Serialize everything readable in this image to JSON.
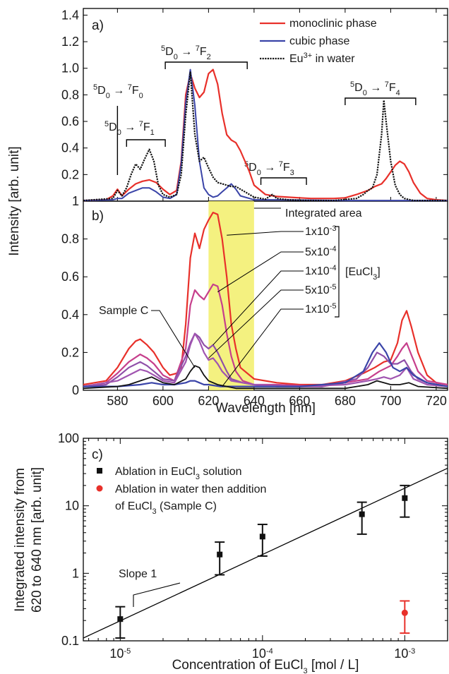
{
  "figure": {
    "panel_a_label": "a)",
    "panel_b_label": "b)",
    "panel_c_label": "c)",
    "shared_ylabel": "Intensity [arb. unit]",
    "xlabel_ab": "Wavelength [nm]",
    "integrated_area_label": "Integrated area",
    "euc_label": "[EuCl3]",
    "sample_c_label": "Sample C",
    "slope_label": "Slope 1",
    "transitions": [
      "5D0 → 7F0",
      "5D0 → 7F1",
      "5D0 → 7F2",
      "5D0 → 7F3",
      "5D0 → 7F4"
    ],
    "colors": {
      "red": "#e8302a",
      "blue": "#3a44a8",
      "black": "#111111",
      "yellow": "#f2ee6a",
      "mag1": "#c63f8c",
      "mag2": "#a054b0",
      "mag3": "#8f4fa8"
    }
  },
  "chart_data": [
    {
      "panel": "a",
      "type": "line",
      "xlabel": "Wavelength [nm]",
      "ylabel": "Intensity [arb. unit]",
      "xlim": [
        565,
        725
      ],
      "ylim": [
        0,
        1.45
      ],
      "x_ticks": [
        580,
        600,
        620,
        640,
        660,
        680,
        700,
        720
      ],
      "y_ticks": [
        0.2,
        0.4,
        0.6,
        0.8,
        1.0,
        1.2,
        1.4
      ],
      "y_tick_labels": [
        "0.2",
        "0.4",
        "0.6",
        "0.8",
        "1.0",
        "1.2",
        "1.4"
      ],
      "legend": [
        "monoclinic phase",
        "cubic phase",
        "Eu3+ in water"
      ],
      "legend_position": "top-right",
      "series": [
        {
          "name": "monoclinic phase",
          "style": "solid red",
          "x": [
            565,
            575,
            578,
            580,
            582,
            585,
            588,
            591,
            594,
            597,
            600,
            603,
            606,
            608,
            610,
            612,
            614,
            616,
            618,
            620,
            622,
            624,
            626,
            628,
            630,
            632,
            634,
            636,
            638,
            640,
            645,
            650,
            655,
            660,
            665,
            670,
            675,
            680,
            685,
            690,
            693,
            696,
            698,
            700,
            702,
            704,
            706,
            708,
            710,
            713,
            716,
            720,
            725
          ],
          "y": [
            0.005,
            0.01,
            0.04,
            0.09,
            0.04,
            0.09,
            0.13,
            0.15,
            0.16,
            0.14,
            0.09,
            0.05,
            0.08,
            0.3,
            0.8,
            0.96,
            0.85,
            0.78,
            0.82,
            0.96,
            0.99,
            0.88,
            0.66,
            0.5,
            0.46,
            0.44,
            0.38,
            0.3,
            0.22,
            0.12,
            0.05,
            0.035,
            0.03,
            0.025,
            0.02,
            0.02,
            0.02,
            0.025,
            0.05,
            0.08,
            0.11,
            0.13,
            0.17,
            0.22,
            0.27,
            0.3,
            0.28,
            0.22,
            0.14,
            0.06,
            0.02,
            0.01,
            0.005
          ]
        },
        {
          "name": "cubic phase",
          "style": "solid blue",
          "x": [
            565,
            578,
            580,
            582,
            585,
            588,
            591,
            594,
            597,
            600,
            603,
            606,
            608,
            610,
            612,
            614,
            616,
            618,
            620,
            622,
            624,
            626,
            628,
            630,
            632,
            634,
            640,
            650,
            680,
            700,
            725
          ],
          "y": [
            0.005,
            0.01,
            0.02,
            0.02,
            0.06,
            0.08,
            0.1,
            0.1,
            0.07,
            0.03,
            0.02,
            0.05,
            0.28,
            0.74,
            0.99,
            0.72,
            0.3,
            0.1,
            0.05,
            0.03,
            0.04,
            0.07,
            0.1,
            0.13,
            0.09,
            0.04,
            0.01,
            0.01,
            0.005,
            0.005,
            0.005
          ]
        },
        {
          "name": "Eu3+ in water",
          "style": "dotted black",
          "x": [
            565,
            578,
            580,
            582,
            584,
            586,
            588,
            590,
            592,
            594,
            596,
            598,
            600,
            603,
            606,
            608,
            610,
            612,
            614,
            616,
            618,
            620,
            622,
            624,
            626,
            628,
            630,
            632,
            634,
            636,
            638,
            640,
            645,
            648,
            650,
            655,
            665,
            675,
            685,
            688,
            690,
            692,
            694,
            696,
            697,
            698,
            700,
            702,
            704,
            706,
            710,
            725
          ],
          "y": [
            0.005,
            0.02,
            0.08,
            0.04,
            0.1,
            0.2,
            0.28,
            0.24,
            0.32,
            0.39,
            0.3,
            0.12,
            0.05,
            0.03,
            0.05,
            0.2,
            0.65,
            0.97,
            0.5,
            0.3,
            0.33,
            0.25,
            0.18,
            0.14,
            0.13,
            0.12,
            0.11,
            0.11,
            0.09,
            0.07,
            0.05,
            0.03,
            0.015,
            0.05,
            0.02,
            0.01,
            0.005,
            0.005,
            0.02,
            0.05,
            0.08,
            0.1,
            0.2,
            0.5,
            0.76,
            0.6,
            0.3,
            0.12,
            0.05,
            0.02,
            0.005,
            0.005
          ]
        }
      ]
    },
    {
      "panel": "b",
      "type": "line",
      "xlabel": "Wavelength [nm]",
      "ylabel": "Intensity [arb. unit]",
      "xlim": [
        565,
        725
      ],
      "ylim": [
        0,
        1.0
      ],
      "x_ticks": [
        580,
        600,
        620,
        640,
        660,
        680,
        700,
        720
      ],
      "y_ticks": [
        0,
        0.2,
        0.4,
        0.6,
        0.8
      ],
      "y_tick_labels": [
        "0",
        "0.2",
        "0.4",
        "0.6",
        "0.8"
      ],
      "highlight_band": [
        620,
        640
      ],
      "legend": [
        "1x10-3",
        "5x10-4",
        "1x10-4",
        "5x10-5",
        "1x10-5"
      ],
      "series": [
        {
          "name": "1x10-3",
          "color": "red",
          "x": [
            565,
            575,
            580,
            585,
            588,
            590,
            593,
            596,
            600,
            603,
            606,
            608,
            610,
            612,
            614,
            616,
            618,
            620,
            622,
            624,
            626,
            628,
            630,
            632,
            634,
            640,
            650,
            660,
            670,
            680,
            688,
            693,
            697,
            700,
            703,
            705,
            707,
            709,
            712,
            716,
            720,
            725
          ],
          "y": [
            0.03,
            0.05,
            0.12,
            0.22,
            0.26,
            0.27,
            0.24,
            0.2,
            0.12,
            0.08,
            0.09,
            0.12,
            0.35,
            0.7,
            0.83,
            0.75,
            0.85,
            0.9,
            0.94,
            0.93,
            0.8,
            0.6,
            0.35,
            0.22,
            0.12,
            0.06,
            0.04,
            0.03,
            0.03,
            0.05,
            0.09,
            0.12,
            0.15,
            0.16,
            0.25,
            0.37,
            0.42,
            0.34,
            0.2,
            0.08,
            0.04,
            0.03
          ]
        },
        {
          "name": "5x10-4",
          "color": "mag1",
          "x": [
            565,
            575,
            580,
            585,
            590,
            593,
            596,
            600,
            605,
            610,
            612,
            614,
            616,
            618,
            620,
            622,
            624,
            626,
            628,
            630,
            632,
            635,
            640,
            650,
            670,
            690,
            695,
            700,
            703,
            705,
            707,
            709,
            712,
            716,
            725
          ],
          "y": [
            0.02,
            0.04,
            0.09,
            0.15,
            0.19,
            0.17,
            0.14,
            0.08,
            0.05,
            0.22,
            0.45,
            0.53,
            0.5,
            0.48,
            0.52,
            0.56,
            0.55,
            0.45,
            0.3,
            0.18,
            0.1,
            0.05,
            0.03,
            0.03,
            0.02,
            0.06,
            0.1,
            0.13,
            0.18,
            0.22,
            0.25,
            0.19,
            0.1,
            0.05,
            0.03
          ]
        },
        {
          "name": "1x10-4",
          "color": "mag3",
          "x": [
            565,
            575,
            580,
            585,
            590,
            593,
            596,
            600,
            605,
            610,
            612,
            614,
            616,
            618,
            620,
            622,
            624,
            626,
            628,
            630,
            635,
            640,
            650,
            670,
            685,
            690,
            694,
            697,
            700,
            703,
            706,
            709,
            712,
            716,
            725
          ],
          "y": [
            0.02,
            0.03,
            0.07,
            0.12,
            0.15,
            0.13,
            0.1,
            0.06,
            0.05,
            0.18,
            0.25,
            0.3,
            0.28,
            0.24,
            0.22,
            0.24,
            0.2,
            0.15,
            0.1,
            0.06,
            0.04,
            0.03,
            0.02,
            0.02,
            0.06,
            0.12,
            0.2,
            0.18,
            0.14,
            0.14,
            0.16,
            0.1,
            0.06,
            0.04,
            0.02
          ]
        },
        {
          "name": "5x10-5",
          "color": "mag2",
          "x": [
            565,
            580,
            585,
            590,
            593,
            596,
            600,
            605,
            610,
            612,
            614,
            616,
            618,
            620,
            622,
            624,
            626,
            630,
            640,
            660,
            680,
            690,
            694,
            697,
            700,
            704,
            707,
            710,
            716,
            725
          ],
          "y": [
            0.02,
            0.05,
            0.08,
            0.11,
            0.1,
            0.08,
            0.05,
            0.04,
            0.15,
            0.24,
            0.3,
            0.26,
            0.2,
            0.16,
            0.17,
            0.14,
            0.1,
            0.05,
            0.03,
            0.02,
            0.03,
            0.05,
            0.06,
            0.07,
            0.06,
            0.08,
            0.12,
            0.06,
            0.03,
            0.02
          ]
        },
        {
          "name": "1x10-5",
          "color": "blue",
          "x": [
            565,
            580,
            590,
            595,
            600,
            605,
            610,
            612,
            614,
            616,
            618,
            620,
            625,
            630,
            640,
            660,
            680,
            688,
            692,
            695,
            698,
            701,
            704,
            707,
            710,
            716,
            725
          ],
          "y": [
            0.02,
            0.02,
            0.03,
            0.04,
            0.03,
            0.03,
            0.04,
            0.05,
            0.05,
            0.04,
            0.03,
            0.03,
            0.02,
            0.02,
            0.02,
            0.02,
            0.04,
            0.1,
            0.2,
            0.25,
            0.2,
            0.12,
            0.1,
            0.12,
            0.08,
            0.04,
            0.02
          ]
        },
        {
          "name": "Sample C",
          "color": "black",
          "x": [
            565,
            580,
            585,
            590,
            595,
            600,
            605,
            610,
            612,
            614,
            616,
            618,
            620,
            624,
            628,
            632,
            640,
            660,
            680,
            690,
            694,
            697,
            700,
            704,
            708,
            712,
            725
          ],
          "y": [
            0.01,
            0.02,
            0.03,
            0.05,
            0.07,
            0.04,
            0.03,
            0.06,
            0.1,
            0.13,
            0.12,
            0.08,
            0.05,
            0.03,
            0.02,
            0.01,
            0.01,
            0.01,
            0.01,
            0.03,
            0.05,
            0.04,
            0.03,
            0.03,
            0.04,
            0.02,
            0.01
          ]
        }
      ]
    },
    {
      "panel": "c",
      "type": "scatter",
      "xlabel": "Concentration of EuCl3 [mol / L]",
      "ylabel": "Integrated intensity from 620 to 640 nm [arb. unit]",
      "x_scale": "log",
      "y_scale": "log",
      "xlim": [
        5.5e-06,
        0.002
      ],
      "ylim": [
        0.1,
        100
      ],
      "x_tick_labels": [
        "10-5",
        "10-4",
        "10-3"
      ],
      "y_tick_labels": [
        "0.1",
        "1",
        "10",
        "100"
      ],
      "legend": [
        "Ablation in EuCl3 solution",
        "Ablation in water then addition of EuCl3 (Sample C)"
      ],
      "legend_position": "top-left",
      "series": [
        {
          "name": "Ablation in EuCl3 solution",
          "marker": "square",
          "color": "black",
          "x": [
            1e-05,
            5e-05,
            0.0001,
            0.0005,
            0.001
          ],
          "y": [
            0.21,
            1.9,
            3.5,
            7.5,
            13
          ],
          "y_err_low": [
            0.11,
            0.95,
            1.8,
            3.8,
            6.8
          ],
          "y_err_high": [
            0.32,
            2.9,
            5.3,
            11.3,
            20
          ]
        },
        {
          "name": "Ablation in water then addition of EuCl3 (Sample C)",
          "marker": "circle",
          "color": "red",
          "x": [
            0.001
          ],
          "y": [
            0.26
          ],
          "y_err_low": [
            0.13
          ],
          "y_err_high": [
            0.39
          ]
        },
        {
          "name": "fit",
          "style": "line",
          "x": [
            5.5e-06,
            0.002
          ],
          "y": [
            0.11,
            36
          ]
        }
      ]
    }
  ]
}
